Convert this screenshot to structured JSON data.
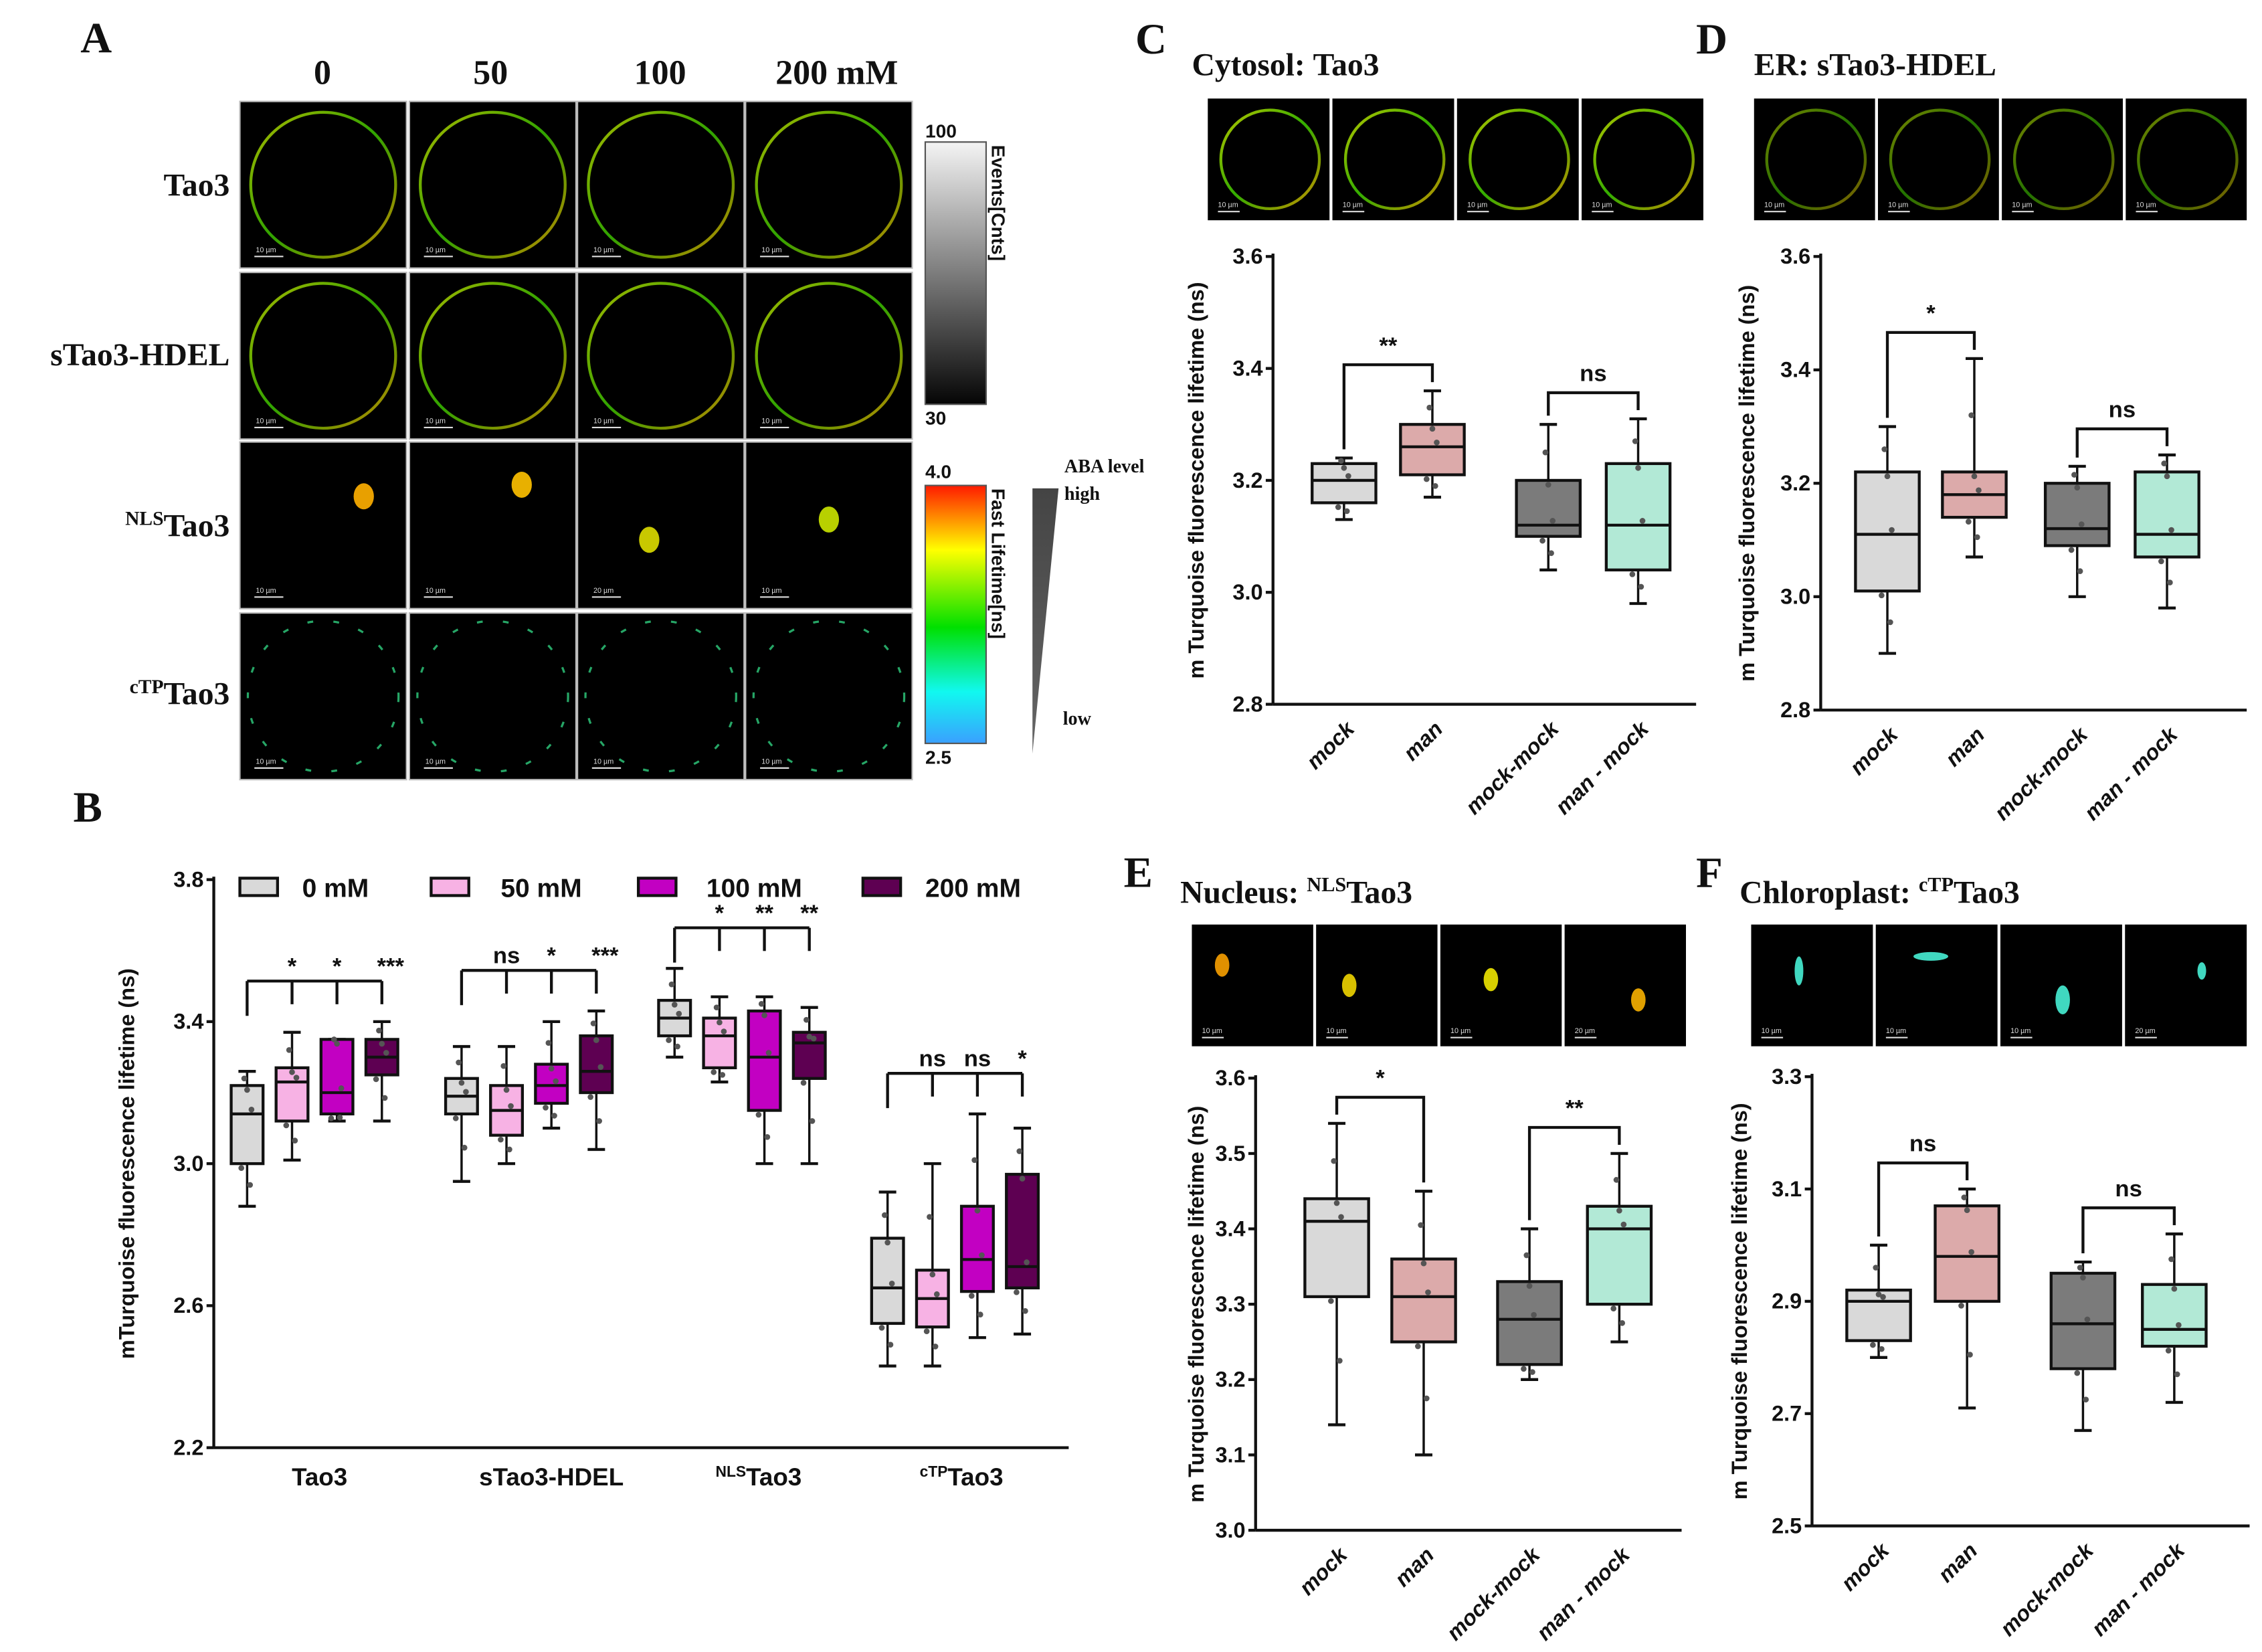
{
  "panel_a": {
    "letter": "A",
    "columns": [
      "0",
      "50",
      "100",
      "200 mM"
    ],
    "rows": [
      {
        "sup": "",
        "label": "Tao3"
      },
      {
        "sup": "",
        "label": "sTao3-HDEL"
      },
      {
        "sup": "NLS",
        "label": "Tao3"
      },
      {
        "sup": "cTP",
        "label": "Tao3"
      }
    ],
    "scale_bars": [
      [
        "10 µm",
        "10 µm",
        "10 µm",
        "10 µm"
      ],
      [
        "10 µm",
        "10 µm",
        "10 µm",
        "10 µm"
      ],
      [
        "10 µm",
        "10 µm",
        "20 µm",
        "10 µm"
      ],
      [
        "10 µm",
        "10 µm",
        "10 µm",
        "10 µm"
      ]
    ],
    "intensity_bar": {
      "max": "100",
      "min": "30",
      "label": "Events[Cnts]"
    },
    "lifetime_bar": {
      "max": "4.0",
      "min": "2.5",
      "label": "Fast Lifetime[ns]"
    },
    "aba": {
      "title": "ABA level",
      "high": "high",
      "low": "low"
    }
  },
  "chart_data": [
    {
      "id": "B",
      "letter": "B",
      "type": "box",
      "title": "",
      "ylabel": "mTurquoise fluorescence lifetime (ns)",
      "ylim": [
        2.2,
        3.8
      ],
      "yticks": [
        "2.2",
        "2.6",
        "3.0",
        "3.4",
        "3.8"
      ],
      "legend": {
        "placement": "top",
        "entries": [
          "0 mM",
          "50 mM",
          "100 mM",
          "200 mM"
        ]
      },
      "series_colors": [
        "#d9d9d9",
        "#f7b2e4",
        "#c200c2",
        "#5e0052"
      ],
      "groups": [
        {
          "sup": "",
          "label": "Tao3",
          "sig": [
            "*",
            "*",
            "***"
          ],
          "boxes": [
            [
              2.88,
              3.0,
              3.14,
              3.22,
              3.26
            ],
            [
              3.01,
              3.12,
              3.23,
              3.27,
              3.37
            ],
            [
              3.12,
              3.14,
              3.2,
              3.35,
              3.35
            ],
            [
              3.12,
              3.25,
              3.3,
              3.35,
              3.4
            ]
          ]
        },
        {
          "sup": "",
          "label": "sTao3-HDEL",
          "sig": [
            "ns",
            "*",
            "***"
          ],
          "boxes": [
            [
              2.95,
              3.14,
              3.19,
              3.24,
              3.33
            ],
            [
              3.0,
              3.08,
              3.15,
              3.22,
              3.33
            ],
            [
              3.1,
              3.17,
              3.22,
              3.28,
              3.4
            ],
            [
              3.04,
              3.2,
              3.26,
              3.36,
              3.43
            ]
          ]
        },
        {
          "sup": "NLS",
          "label": "Tao3",
          "sig": [
            "*",
            "**",
            "**"
          ],
          "boxes": [
            [
              3.3,
              3.36,
              3.41,
              3.46,
              3.55
            ],
            [
              3.23,
              3.27,
              3.36,
              3.41,
              3.47
            ],
            [
              3.0,
              3.15,
              3.3,
              3.43,
              3.47
            ],
            [
              3.0,
              3.24,
              3.34,
              3.37,
              3.44
            ]
          ]
        },
        {
          "sup": "cTP",
          "label": "Tao3",
          "sig": [
            "ns",
            "ns",
            "*"
          ],
          "boxes": [
            [
              2.43,
              2.55,
              2.65,
              2.79,
              2.92
            ],
            [
              2.43,
              2.54,
              2.62,
              2.7,
              3.0
            ],
            [
              2.51,
              2.64,
              2.73,
              2.88,
              3.14
            ],
            [
              2.52,
              2.65,
              2.71,
              2.97,
              3.1
            ]
          ]
        }
      ]
    },
    {
      "id": "C",
      "letter": "C",
      "type": "box",
      "title": "Cytosol: ",
      "title_sup": "",
      "title_main": "Tao3",
      "ylabel": "m Turquoise fluorescence lifetime (ns)",
      "ylim": [
        2.8,
        3.6
      ],
      "yticks": [
        "2.8",
        "3.0",
        "3.2",
        "3.4",
        "3.6"
      ],
      "categories": [
        "mock",
        "man",
        "mock-mock",
        "man - mock"
      ],
      "colors": [
        "#d9d9d9",
        "#dcaaaa",
        "#7b7b7b",
        "#b2e9d6"
      ],
      "boxes": [
        [
          3.13,
          3.16,
          3.2,
          3.23,
          3.24
        ],
        [
          3.17,
          3.21,
          3.26,
          3.3,
          3.36
        ],
        [
          3.04,
          3.1,
          3.12,
          3.2,
          3.3
        ],
        [
          2.98,
          3.04,
          3.12,
          3.23,
          3.31
        ]
      ],
      "sig": [
        "**",
        "ns"
      ],
      "tile_scales": [
        "10 µm",
        "10 µm",
        "10 µm",
        "10 µm"
      ]
    },
    {
      "id": "D",
      "letter": "D",
      "type": "box",
      "title": "ER: ",
      "title_sup": "",
      "title_main": "sTao3-HDEL",
      "ylabel": "m Turquoise fluorescence lifetime (ns)",
      "ylim": [
        2.8,
        3.6
      ],
      "yticks": [
        "2.8",
        "3.0",
        "3.2",
        "3.4",
        "3.6"
      ],
      "categories": [
        "mock",
        "man",
        "mock-mock",
        "man - mock"
      ],
      "colors": [
        "#d9d9d9",
        "#dcaaaa",
        "#7b7b7b",
        "#b2e9d6"
      ],
      "boxes": [
        [
          2.9,
          3.01,
          3.11,
          3.22,
          3.3
        ],
        [
          3.07,
          3.14,
          3.18,
          3.22,
          3.42
        ],
        [
          3.0,
          3.09,
          3.12,
          3.2,
          3.23
        ],
        [
          2.98,
          3.07,
          3.11,
          3.22,
          3.25
        ]
      ],
      "sig": [
        "*",
        "ns"
      ],
      "tile_scales": [
        "10 µm",
        "10 µm",
        "10 µm",
        "10 µm"
      ]
    },
    {
      "id": "E",
      "letter": "E",
      "type": "box",
      "title": "Nucleus: ",
      "title_sup": "NLS",
      "title_main": "Tao3",
      "ylabel": "m Turquoise fluorescence lifetime (ns)",
      "ylim": [
        3.0,
        3.6
      ],
      "yticks": [
        "3.0",
        "3.1",
        "3.2",
        "3.3",
        "3.4",
        "3.5",
        "3.6"
      ],
      "categories": [
        "mock",
        "man",
        "mock-mock",
        "man - mock"
      ],
      "colors": [
        "#d9d9d9",
        "#dcaaaa",
        "#7b7b7b",
        "#b2e9d6"
      ],
      "boxes": [
        [
          3.14,
          3.31,
          3.41,
          3.44,
          3.54
        ],
        [
          3.1,
          3.25,
          3.31,
          3.36,
          3.45
        ],
        [
          3.2,
          3.22,
          3.28,
          3.33,
          3.4
        ],
        [
          3.25,
          3.3,
          3.4,
          3.43,
          3.5
        ]
      ],
      "sig": [
        "*",
        "**"
      ],
      "tile_scales": [
        "10 µm",
        "10 µm",
        "10 µm",
        "20 µm"
      ]
    },
    {
      "id": "F",
      "letter": "F",
      "type": "box",
      "title": "Chloroplast: ",
      "title_sup": "cTP",
      "title_main": "Tao3",
      "ylabel": "m Turquoise fluorescence lifetime (ns)",
      "ylim": [
        2.5,
        3.3
      ],
      "yticks": [
        "2.5",
        "2.7",
        "2.9",
        "3.1",
        "3.3"
      ],
      "categories": [
        "mock",
        "man",
        "mock-mock",
        "man - mock"
      ],
      "colors": [
        "#d9d9d9",
        "#dcaaaa",
        "#7b7b7b",
        "#b2e9d6"
      ],
      "boxes": [
        [
          2.8,
          2.83,
          2.9,
          2.92,
          3.0
        ],
        [
          2.71,
          2.9,
          2.98,
          3.07,
          3.1
        ],
        [
          2.67,
          2.78,
          2.86,
          2.95,
          2.97
        ],
        [
          2.72,
          2.82,
          2.85,
          2.93,
          3.02
        ]
      ],
      "sig": [
        "ns",
        "ns"
      ],
      "tile_scales": [
        "10 µm",
        "10 µm",
        "10 µm",
        "20 µm"
      ]
    }
  ]
}
